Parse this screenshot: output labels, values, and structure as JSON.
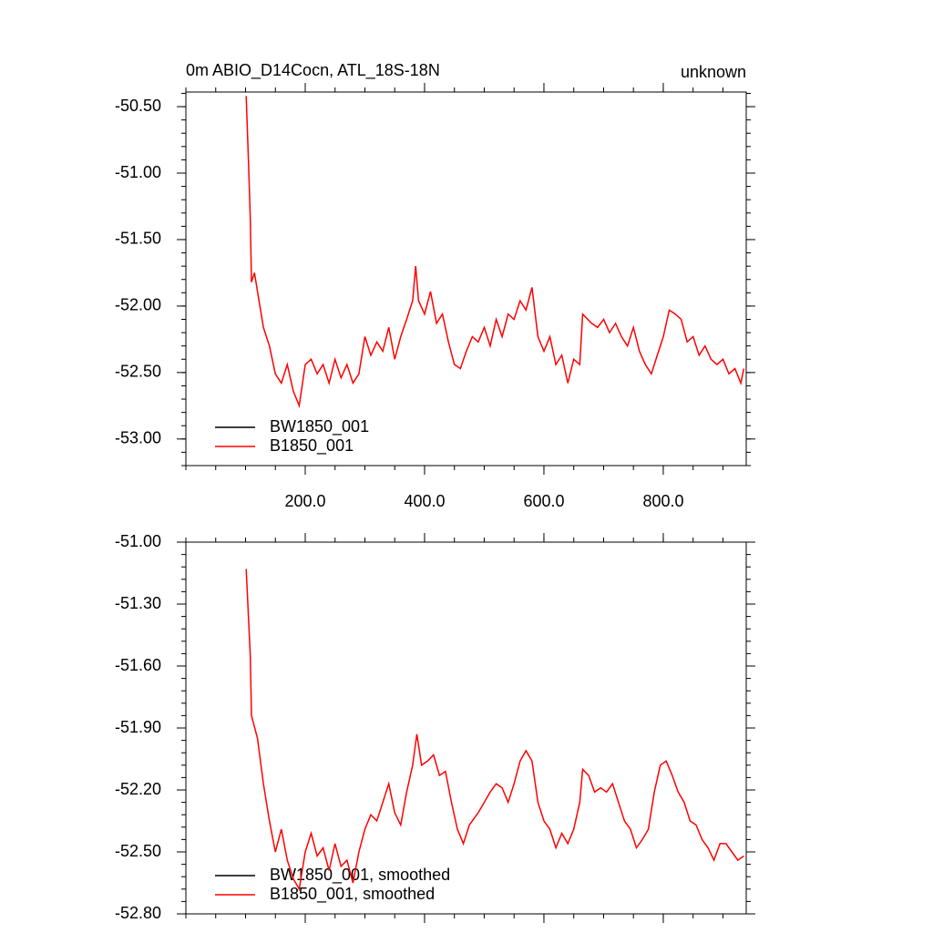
{
  "chart_data": [
    {
      "type": "line",
      "title": "0m ABIO_D14Cocn, ATL_18S-18N",
      "right_title": "unknown",
      "x": [
        101,
        105,
        108,
        110,
        115,
        120,
        130,
        140,
        150,
        160,
        170,
        180,
        190,
        200,
        210,
        220,
        230,
        240,
        250,
        260,
        270,
        280,
        290,
        300,
        310,
        320,
        330,
        340,
        350,
        360,
        370,
        380,
        385,
        390,
        400,
        410,
        420,
        430,
        440,
        450,
        460,
        470,
        480,
        490,
        500,
        510,
        520,
        530,
        540,
        550,
        560,
        570,
        580,
        590,
        600,
        610,
        620,
        630,
        640,
        650,
        660,
        665,
        680,
        690,
        700,
        710,
        720,
        730,
        740,
        750,
        760,
        770,
        780,
        790,
        800,
        810,
        820,
        830,
        840,
        850,
        860,
        870,
        880,
        890,
        900,
        910,
        920,
        930,
        935
      ],
      "series": [
        {
          "name": "BW1850_001",
          "color": "#000000",
          "values": [
            null,
            null,
            null,
            null,
            null,
            null,
            null,
            null,
            null,
            null,
            null,
            null,
            null,
            null,
            null,
            null,
            null,
            null,
            null,
            null,
            null,
            null,
            null,
            null,
            null,
            null,
            null,
            null,
            null,
            null,
            null,
            null,
            null,
            null,
            null,
            null,
            null,
            null,
            null,
            null,
            null,
            null,
            null,
            null,
            null,
            null,
            null,
            null,
            null,
            null,
            null,
            null,
            null,
            null,
            null,
            null,
            null,
            null,
            null,
            null,
            null,
            null,
            null,
            null,
            null,
            null,
            null,
            null,
            null,
            null,
            null,
            null,
            null,
            null,
            null,
            null,
            null,
            null,
            null,
            null,
            null,
            null,
            null,
            null,
            null,
            null,
            null,
            null,
            null
          ]
        },
        {
          "name": "B1850_001",
          "color": "#ff0000",
          "values": [
            -50.42,
            -50.93,
            -51.34,
            -51.82,
            -51.75,
            -51.89,
            -52.16,
            -52.3,
            -52.51,
            -52.58,
            -52.44,
            -52.64,
            -52.75,
            -52.44,
            -52.4,
            -52.51,
            -52.44,
            -52.58,
            -52.4,
            -52.54,
            -52.44,
            -52.58,
            -52.51,
            -52.23,
            -52.37,
            -52.27,
            -52.34,
            -52.16,
            -52.4,
            -52.23,
            -52.1,
            -51.96,
            -51.7,
            -51.96,
            -52.06,
            -51.89,
            -52.13,
            -52.06,
            -52.27,
            -52.44,
            -52.47,
            -52.34,
            -52.23,
            -52.27,
            -52.16,
            -52.3,
            -52.1,
            -52.23,
            -52.06,
            -52.1,
            -51.96,
            -52.03,
            -51.86,
            -52.23,
            -52.34,
            -52.23,
            -52.44,
            -52.37,
            -52.58,
            -52.4,
            -52.44,
            -52.06,
            -52.13,
            -52.16,
            -52.1,
            -52.2,
            -52.13,
            -52.23,
            -52.3,
            -52.16,
            -52.34,
            -52.44,
            -52.51,
            -52.37,
            -52.23,
            -52.03,
            -52.06,
            -52.1,
            -52.27,
            -52.23,
            -52.37,
            -52.3,
            -52.4,
            -52.44,
            -52.4,
            -52.51,
            -52.47,
            -52.58,
            -52.47
          ]
        }
      ],
      "xlim": [
        0,
        939
      ],
      "xticks": [
        {
          "value": 200,
          "label": "200.0"
        },
        {
          "value": 400,
          "label": "400.0"
        },
        {
          "value": 600,
          "label": "600.0"
        },
        {
          "value": 800,
          "label": "800.0"
        }
      ],
      "ylim": [
        -53.2,
        -50.39
      ],
      "yticks": [
        {
          "value": -50.5,
          "label": "-50.50"
        },
        {
          "value": -51,
          "label": "-51.00"
        },
        {
          "value": -51.5,
          "label": "-51.50"
        },
        {
          "value": -52,
          "label": "-52.00"
        },
        {
          "value": -52.5,
          "label": "-52.50"
        },
        {
          "value": -53,
          "label": "-53.00"
        }
      ],
      "legend": "lower-left"
    },
    {
      "type": "line",
      "x": [
        101,
        108,
        110,
        120,
        130,
        140,
        150,
        160,
        170,
        180,
        190,
        200,
        210,
        220,
        230,
        240,
        250,
        260,
        270,
        280,
        290,
        300,
        310,
        320,
        330,
        340,
        350,
        360,
        370,
        380,
        387,
        395,
        405,
        415,
        425,
        435,
        445,
        455,
        465,
        475,
        490,
        500,
        510,
        520,
        530,
        540,
        550,
        560,
        570,
        580,
        590,
        600,
        610,
        620,
        630,
        640,
        650,
        660,
        665,
        675,
        685,
        695,
        705,
        715,
        725,
        735,
        745,
        755,
        765,
        775,
        785,
        795,
        805,
        815,
        825,
        835,
        845,
        855,
        865,
        875,
        885,
        895,
        905,
        915,
        925,
        935
      ],
      "series": [
        {
          "name": "BW1850_001, smoothed",
          "color": "#000000",
          "values": [
            null,
            null,
            null,
            null,
            null,
            null,
            null,
            null,
            null,
            null,
            null,
            null,
            null,
            null,
            null,
            null,
            null,
            null,
            null,
            null,
            null,
            null,
            null,
            null,
            null,
            null,
            null,
            null,
            null,
            null,
            null,
            null,
            null,
            null,
            null,
            null,
            null,
            null,
            null,
            null,
            null,
            null,
            null,
            null,
            null,
            null,
            null,
            null,
            null,
            null,
            null,
            null,
            null,
            null,
            null,
            null,
            null,
            null,
            null,
            null,
            null,
            null,
            null,
            null,
            null,
            null,
            null,
            null,
            null,
            null,
            null,
            null,
            null,
            null,
            null,
            null,
            null,
            null,
            null,
            null,
            null,
            null,
            null,
            null,
            null,
            null
          ]
        },
        {
          "name": "B1850_001, smoothed",
          "color": "#ff0000",
          "values": [
            -51.13,
            -51.55,
            -51.84,
            -51.95,
            -52.17,
            -52.35,
            -52.5,
            -52.39,
            -52.54,
            -52.63,
            -52.68,
            -52.5,
            -52.41,
            -52.52,
            -52.48,
            -52.59,
            -52.46,
            -52.57,
            -52.54,
            -52.65,
            -52.5,
            -52.39,
            -52.32,
            -52.35,
            -52.26,
            -52.17,
            -52.31,
            -52.37,
            -52.21,
            -52.08,
            -51.93,
            -52.08,
            -52.06,
            -52.03,
            -52.13,
            -52.11,
            -52.26,
            -52.39,
            -52.46,
            -52.37,
            -52.31,
            -52.26,
            -52.21,
            -52.17,
            -52.19,
            -52.26,
            -52.17,
            -52.06,
            -52.01,
            -52.06,
            -52.26,
            -52.35,
            -52.39,
            -52.48,
            -52.41,
            -52.46,
            -52.39,
            -52.26,
            -52.1,
            -52.13,
            -52.21,
            -52.19,
            -52.21,
            -52.17,
            -52.26,
            -52.35,
            -52.39,
            -52.48,
            -52.44,
            -52.39,
            -52.21,
            -52.08,
            -52.06,
            -52.13,
            -52.21,
            -52.26,
            -52.35,
            -52.37,
            -52.44,
            -52.48,
            -52.54,
            -52.46,
            -52.46,
            -52.5,
            -52.54,
            -52.52
          ]
        }
      ],
      "xlim": [
        0,
        939
      ],
      "xticks": [
        200,
        400,
        600,
        800
      ],
      "ylim": [
        -52.8,
        -51.0
      ],
      "yticks": [
        {
          "value": -51,
          "label": "-51.00"
        },
        {
          "value": -51.3,
          "label": "-51.30"
        },
        {
          "value": -51.6,
          "label": "-51.60"
        },
        {
          "value": -51.9,
          "label": "-51.90"
        },
        {
          "value": -52.2,
          "label": "-52.20"
        },
        {
          "value": -52.5,
          "label": "-52.50"
        },
        {
          "value": -52.8,
          "label": "-52.80"
        }
      ],
      "legend": "lower-left"
    }
  ]
}
